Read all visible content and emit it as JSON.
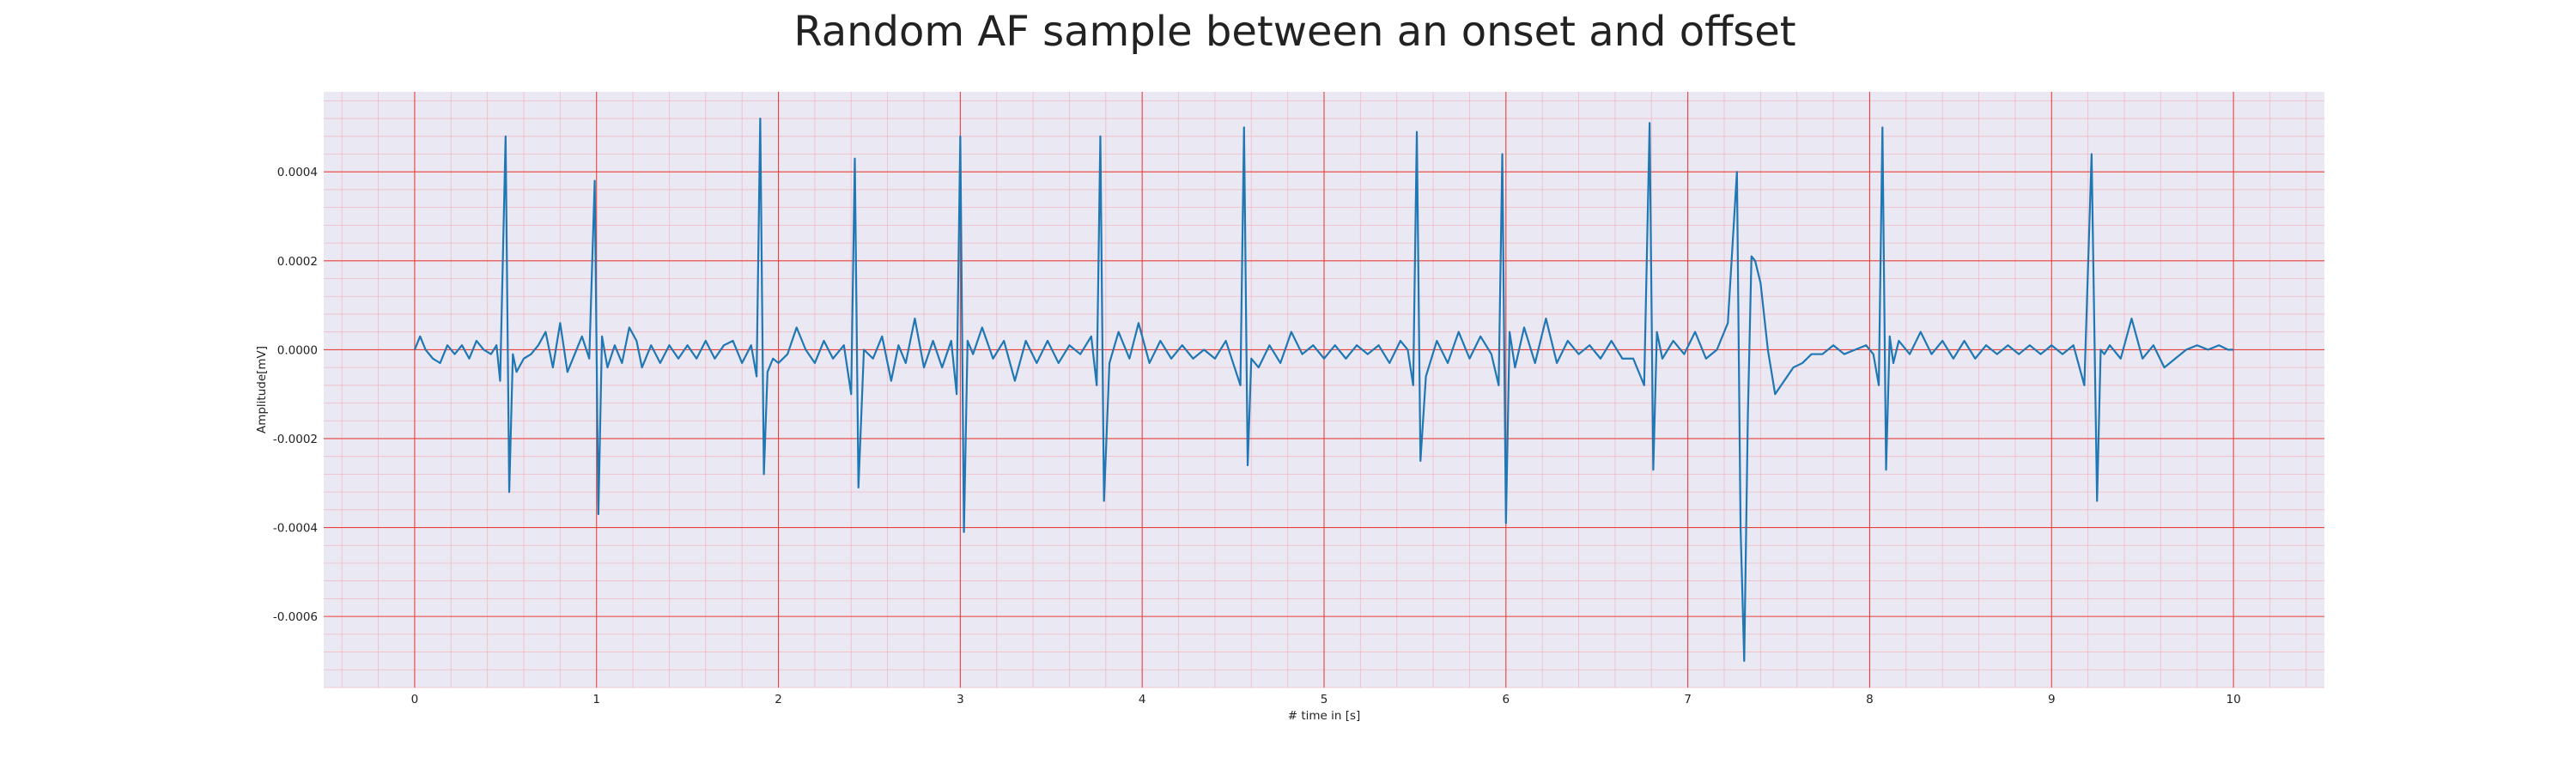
{
  "chart_data": {
    "type": "line",
    "title": "Random AF sample between an onset and offset",
    "xlabel": "# time in [s]",
    "ylabel": "Amplitude[mV]",
    "xlim": [
      -0.5,
      10.5
    ],
    "ylim": [
      -0.00076,
      0.00058
    ],
    "xticks": [
      0,
      1,
      2,
      3,
      4,
      5,
      6,
      7,
      8,
      9,
      10
    ],
    "xtick_labels": [
      "0",
      "1",
      "2",
      "3",
      "4",
      "5",
      "6",
      "7",
      "8",
      "9",
      "10"
    ],
    "yticks": [
      0.0004,
      0.0002,
      0.0,
      -0.0002,
      -0.0004,
      -0.0006
    ],
    "ytick_labels": [
      "0.0004",
      "0.0002",
      "0.0000",
      "-0.0002",
      "-0.0004",
      "-0.0006"
    ],
    "grid": true,
    "minor_grid": true,
    "colors": {
      "line": "#1f77b4",
      "plot_background": "#eae8f2",
      "major_grid": "#e8403a",
      "minor_grid": "#f3a9b1"
    },
    "series": [
      {
        "x": [
          0,
          0.03,
          0.06,
          0.1,
          0.14,
          0.18,
          0.22,
          0.26,
          0.3,
          0.34,
          0.38,
          0.42,
          0.45,
          0.47,
          0.5,
          0.52,
          0.54,
          0.56,
          0.6,
          0.64,
          0.68,
          0.72,
          0.76,
          0.8,
          0.84,
          0.88,
          0.92,
          0.96,
          0.99,
          1.01,
          1.03,
          1.06,
          1.1,
          1.14,
          1.18,
          1.22,
          1.25,
          1.3,
          1.35,
          1.4,
          1.45,
          1.5,
          1.55,
          1.6,
          1.65,
          1.7,
          1.75,
          1.8,
          1.85,
          1.88,
          1.9,
          1.92,
          1.94,
          1.97,
          2.0,
          2.05,
          2.1,
          2.15,
          2.2,
          2.25,
          2.3,
          2.36,
          2.4,
          2.42,
          2.44,
          2.47,
          2.52,
          2.57,
          2.62,
          2.66,
          2.7,
          2.75,
          2.8,
          2.85,
          2.9,
          2.95,
          2.98,
          3.0,
          3.02,
          3.04,
          3.07,
          3.12,
          3.18,
          3.24,
          3.3,
          3.36,
          3.42,
          3.48,
          3.54,
          3.6,
          3.66,
          3.72,
          3.75,
          3.77,
          3.79,
          3.82,
          3.87,
          3.93,
          3.98,
          4.04,
          4.1,
          4.16,
          4.22,
          4.28,
          4.34,
          4.4,
          4.46,
          4.5,
          4.54,
          4.56,
          4.58,
          4.6,
          4.64,
          4.7,
          4.76,
          4.82,
          4.88,
          4.94,
          5.0,
          5.06,
          5.12,
          5.18,
          5.24,
          5.3,
          5.36,
          5.42,
          5.46,
          5.49,
          5.51,
          5.53,
          5.56,
          5.62,
          5.68,
          5.74,
          5.8,
          5.86,
          5.92,
          5.96,
          5.98,
          6.0,
          6.02,
          6.05,
          6.1,
          6.16,
          6.22,
          6.28,
          6.34,
          6.4,
          6.46,
          6.52,
          6.58,
          6.64,
          6.7,
          6.76,
          6.79,
          6.81,
          6.83,
          6.86,
          6.92,
          6.98,
          7.04,
          7.1,
          7.16,
          7.22,
          7.27,
          7.29,
          7.31,
          7.33,
          7.35,
          7.37,
          7.4,
          7.44,
          7.48,
          7.53,
          7.58,
          7.63,
          7.68,
          7.74,
          7.8,
          7.86,
          7.92,
          7.98,
          8.02,
          8.05,
          8.07,
          8.09,
          8.11,
          8.13,
          8.16,
          8.22,
          8.28,
          8.34,
          8.4,
          8.46,
          8.52,
          8.58,
          8.64,
          8.7,
          8.76,
          8.82,
          8.88,
          8.94,
          9.0,
          9.06,
          9.12,
          9.18,
          9.22,
          9.25,
          9.27,
          9.29,
          9.32,
          9.38,
          9.44,
          9.5,
          9.56,
          9.62,
          9.68,
          9.74,
          9.8,
          9.86,
          9.92,
          9.97,
          10.0
        ],
        "y": [
          0.0,
          3e-05,
          0.0,
          -2e-05,
          -3e-05,
          1e-05,
          -1e-05,
          1e-05,
          -2e-05,
          2e-05,
          0.0,
          -1e-05,
          1e-05,
          -7e-05,
          0.00048,
          -0.00032,
          -1e-05,
          -5e-05,
          -2e-05,
          -1e-05,
          1e-05,
          4e-05,
          -4e-05,
          6e-05,
          -5e-05,
          -1e-05,
          3e-05,
          -2e-05,
          0.00038,
          -0.00037,
          3e-05,
          -4e-05,
          1e-05,
          -3e-05,
          5e-05,
          2e-05,
          -4e-05,
          1e-05,
          -3e-05,
          1e-05,
          -2e-05,
          1e-05,
          -2e-05,
          2e-05,
          -2e-05,
          1e-05,
          2e-05,
          -3e-05,
          1e-05,
          -6e-05,
          0.00052,
          -0.00028,
          -5e-05,
          -2e-05,
          -3e-05,
          -1e-05,
          5e-05,
          0.0,
          -3e-05,
          2e-05,
          -2e-05,
          1e-05,
          -0.0001,
          0.00043,
          -0.00031,
          0.0,
          -2e-05,
          3e-05,
          -7e-05,
          1e-05,
          -3e-05,
          7e-05,
          -4e-05,
          2e-05,
          -4e-05,
          2e-05,
          -0.0001,
          0.00048,
          -0.00041,
          2e-05,
          -1e-05,
          5e-05,
          -2e-05,
          2e-05,
          -7e-05,
          2e-05,
          -3e-05,
          2e-05,
          -3e-05,
          1e-05,
          -1e-05,
          3e-05,
          -8e-05,
          0.00048,
          -0.00034,
          -3e-05,
          4e-05,
          -2e-05,
          6e-05,
          -3e-05,
          2e-05,
          -2e-05,
          1e-05,
          -2e-05,
          0.0,
          -2e-05,
          2e-05,
          -3e-05,
          -8e-05,
          0.0005,
          -0.00026,
          -2e-05,
          -4e-05,
          1e-05,
          -3e-05,
          4e-05,
          -1e-05,
          1e-05,
          -2e-05,
          1e-05,
          -2e-05,
          1e-05,
          -1e-05,
          1e-05,
          -3e-05,
          2e-05,
          0.0,
          -8e-05,
          0.00049,
          -0.00025,
          -6e-05,
          2e-05,
          -3e-05,
          4e-05,
          -2e-05,
          3e-05,
          -1e-05,
          -8e-05,
          0.00044,
          -0.00039,
          4e-05,
          -4e-05,
          5e-05,
          -3e-05,
          7e-05,
          -3e-05,
          2e-05,
          -1e-05,
          1e-05,
          -2e-05,
          2e-05,
          -2e-05,
          -2e-05,
          -8e-05,
          0.00051,
          -0.00027,
          4e-05,
          -2e-05,
          2e-05,
          -1e-05,
          4e-05,
          -2e-05,
          0.0,
          6e-05,
          0.0004,
          -0.0004,
          -0.0007,
          -0.00015,
          0.00021,
          0.0002,
          0.00015,
          0.0,
          -0.0001,
          -7e-05,
          -4e-05,
          -3e-05,
          -1e-05,
          -1e-05,
          1e-05,
          -1e-05,
          0.0,
          1e-05,
          -1e-05,
          -8e-05,
          0.0005,
          -0.00027,
          3e-05,
          -3e-05,
          2e-05,
          -1e-05,
          4e-05,
          -1e-05,
          2e-05,
          -2e-05,
          2e-05,
          -2e-05,
          1e-05,
          -1e-05,
          1e-05,
          -1e-05,
          1e-05,
          -1e-05,
          1e-05,
          -1e-05,
          1e-05,
          -8e-05,
          0.00044,
          -0.00034,
          0.0,
          -1e-05,
          1e-05,
          -2e-05,
          7e-05,
          -2e-05,
          1e-05,
          -4e-05,
          -2e-05,
          0.0,
          1e-05,
          0.0,
          1e-05,
          0.0,
          0.0
        ]
      }
    ]
  }
}
